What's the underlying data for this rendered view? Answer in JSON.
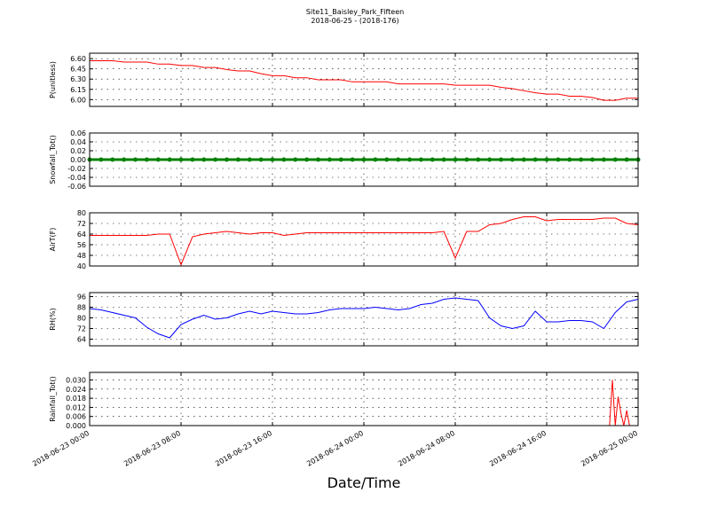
{
  "chart_data": [
    {
      "type": "line",
      "title": "Site11_Baisley_Park_Fifteen",
      "subtitle": "2018-06-25 - (2018-176)",
      "ylabel": "P(unitless)",
      "x": [
        "2018-06-23 00:00",
        "2018-06-23 01:00",
        "2018-06-23 02:00",
        "2018-06-23 03:00",
        "2018-06-23 04:00",
        "2018-06-23 05:00",
        "2018-06-23 06:00",
        "2018-06-23 07:00",
        "2018-06-23 08:00",
        "2018-06-23 09:00",
        "2018-06-23 10:00",
        "2018-06-23 11:00",
        "2018-06-23 12:00",
        "2018-06-23 13:00",
        "2018-06-23 14:00",
        "2018-06-23 15:00",
        "2018-06-23 16:00",
        "2018-06-23 17:00",
        "2018-06-23 18:00",
        "2018-06-23 19:00",
        "2018-06-23 20:00",
        "2018-06-23 21:00",
        "2018-06-23 22:00",
        "2018-06-23 23:00",
        "2018-06-24 00:00",
        "2018-06-24 01:00",
        "2018-06-24 02:00",
        "2018-06-24 03:00",
        "2018-06-24 04:00",
        "2018-06-24 05:00",
        "2018-06-24 06:00",
        "2018-06-24 07:00",
        "2018-06-24 08:00",
        "2018-06-24 09:00",
        "2018-06-24 10:00",
        "2018-06-24 11:00",
        "2018-06-24 12:00",
        "2018-06-24 13:00",
        "2018-06-24 14:00",
        "2018-06-24 15:00",
        "2018-06-24 16:00",
        "2018-06-24 17:00",
        "2018-06-24 18:00",
        "2018-06-24 19:00",
        "2018-06-24 20:00",
        "2018-06-24 21:00",
        "2018-06-24 22:00",
        "2018-06-24 23:00",
        "2018-06-25 00:00"
      ],
      "values": [
        6.57,
        6.57,
        6.57,
        6.55,
        6.55,
        6.55,
        6.52,
        6.52,
        6.5,
        6.5,
        6.47,
        6.47,
        6.44,
        6.42,
        6.42,
        6.38,
        6.35,
        6.35,
        6.32,
        6.32,
        6.29,
        6.29,
        6.29,
        6.26,
        6.26,
        6.26,
        6.26,
        6.23,
        6.23,
        6.23,
        6.23,
        6.23,
        6.21,
        6.21,
        6.21,
        6.21,
        6.18,
        6.16,
        6.13,
        6.1,
        6.08,
        6.08,
        6.05,
        6.05,
        6.03,
        5.99,
        5.99,
        6.02,
        6.02
      ],
      "color": "#ff0000",
      "ylim": [
        5.9,
        6.68
      ],
      "yticks": [
        {
          "value": 6.0,
          "label": "6.00"
        },
        6.15,
        {
          "value": 6.3,
          "label": "6.30"
        },
        6.45,
        {
          "value": 6.6,
          "label": "6.60"
        }
      ],
      "grid": true
    },
    {
      "type": "line",
      "ylabel": "Snowfall_Tot()",
      "marker": true,
      "x": [
        "2018-06-23 00:00",
        "2018-06-23 01:00",
        "2018-06-23 02:00",
        "2018-06-23 03:00",
        "2018-06-23 04:00",
        "2018-06-23 05:00",
        "2018-06-23 06:00",
        "2018-06-23 07:00",
        "2018-06-23 08:00",
        "2018-06-23 09:00",
        "2018-06-23 10:00",
        "2018-06-23 11:00",
        "2018-06-23 12:00",
        "2018-06-23 13:00",
        "2018-06-23 14:00",
        "2018-06-23 15:00",
        "2018-06-23 16:00",
        "2018-06-23 17:00",
        "2018-06-23 18:00",
        "2018-06-23 19:00",
        "2018-06-23 20:00",
        "2018-06-23 21:00",
        "2018-06-23 22:00",
        "2018-06-23 23:00",
        "2018-06-24 00:00",
        "2018-06-24 01:00",
        "2018-06-24 02:00",
        "2018-06-24 03:00",
        "2018-06-24 04:00",
        "2018-06-24 05:00",
        "2018-06-24 06:00",
        "2018-06-24 07:00",
        "2018-06-24 08:00",
        "2018-06-24 09:00",
        "2018-06-24 10:00",
        "2018-06-24 11:00",
        "2018-06-24 12:00",
        "2018-06-24 13:00",
        "2018-06-24 14:00",
        "2018-06-24 15:00",
        "2018-06-24 16:00",
        "2018-06-24 17:00",
        "2018-06-24 18:00",
        "2018-06-24 19:00",
        "2018-06-24 20:00",
        "2018-06-24 21:00",
        "2018-06-24 22:00",
        "2018-06-24 23:00",
        "2018-06-25 00:00"
      ],
      "values": [
        0,
        0,
        0,
        0,
        0,
        0,
        0,
        0,
        0,
        0,
        0,
        0,
        0,
        0,
        0,
        0,
        0,
        0,
        0,
        0,
        0,
        0,
        0,
        0,
        0,
        0,
        0,
        0,
        0,
        0,
        0,
        0,
        0,
        0,
        0,
        0,
        0,
        0,
        0,
        0,
        0,
        0,
        0,
        0,
        0,
        0,
        0,
        0,
        0
      ],
      "color": "#008000",
      "ylim": [
        -0.06,
        0.06
      ],
      "yticks": [
        -0.06,
        -0.04,
        -0.02,
        {
          "value": 0,
          "label": "0.00"
        },
        0.02,
        0.04,
        0.06
      ],
      "grid": true
    },
    {
      "type": "line",
      "ylabel": "AirT(F)",
      "x": [
        "2018-06-23 00:00",
        "2018-06-23 01:00",
        "2018-06-23 02:00",
        "2018-06-23 03:00",
        "2018-06-23 04:00",
        "2018-06-23 05:00",
        "2018-06-23 06:00",
        "2018-06-23 07:00",
        "2018-06-23 08:00",
        "2018-06-23 09:00",
        "2018-06-23 10:00",
        "2018-06-23 11:00",
        "2018-06-23 12:00",
        "2018-06-23 13:00",
        "2018-06-23 14:00",
        "2018-06-23 15:00",
        "2018-06-23 16:00",
        "2018-06-23 17:00",
        "2018-06-23 18:00",
        "2018-06-23 19:00",
        "2018-06-23 20:00",
        "2018-06-23 21:00",
        "2018-06-23 22:00",
        "2018-06-23 23:00",
        "2018-06-24 00:00",
        "2018-06-24 01:00",
        "2018-06-24 02:00",
        "2018-06-24 03:00",
        "2018-06-24 04:00",
        "2018-06-24 05:00",
        "2018-06-24 06:00",
        "2018-06-24 07:00",
        "2018-06-24 08:00",
        "2018-06-24 09:00",
        "2018-06-24 10:00",
        "2018-06-24 11:00",
        "2018-06-24 12:00",
        "2018-06-24 13:00",
        "2018-06-24 14:00",
        "2018-06-24 15:00",
        "2018-06-24 16:00",
        "2018-06-24 17:00",
        "2018-06-24 18:00",
        "2018-06-24 19:00",
        "2018-06-24 20:00",
        "2018-06-24 21:00",
        "2018-06-24 22:00",
        "2018-06-24 23:00",
        "2018-06-25 00:00"
      ],
      "values": [
        63,
        63,
        63,
        63,
        63,
        63,
        64,
        64,
        41,
        62,
        64,
        65,
        66,
        65,
        64,
        65,
        65,
        63,
        64,
        65,
        65,
        65,
        65,
        65,
        65,
        65,
        65,
        65,
        65,
        65,
        65,
        66,
        46,
        66,
        66,
        71,
        72,
        75,
        77,
        77,
        74,
        75,
        75,
        75,
        75,
        76,
        76,
        72,
        71
      ],
      "color": "#ff0000",
      "ylim": [
        40,
        80
      ],
      "yticks": [
        40,
        48,
        56,
        64,
        72,
        80
      ],
      "grid": true
    },
    {
      "type": "line",
      "ylabel": "RH(%)",
      "x": [
        "2018-06-23 00:00",
        "2018-06-23 01:00",
        "2018-06-23 02:00",
        "2018-06-23 03:00",
        "2018-06-23 04:00",
        "2018-06-23 05:00",
        "2018-06-23 06:00",
        "2018-06-23 07:00",
        "2018-06-23 08:00",
        "2018-06-23 09:00",
        "2018-06-23 10:00",
        "2018-06-23 11:00",
        "2018-06-23 12:00",
        "2018-06-23 13:00",
        "2018-06-23 14:00",
        "2018-06-23 15:00",
        "2018-06-23 16:00",
        "2018-06-23 17:00",
        "2018-06-23 18:00",
        "2018-06-23 19:00",
        "2018-06-23 20:00",
        "2018-06-23 21:00",
        "2018-06-23 22:00",
        "2018-06-23 23:00",
        "2018-06-24 00:00",
        "2018-06-24 01:00",
        "2018-06-24 02:00",
        "2018-06-24 03:00",
        "2018-06-24 04:00",
        "2018-06-24 05:00",
        "2018-06-24 06:00",
        "2018-06-24 07:00",
        "2018-06-24 08:00",
        "2018-06-24 09:00",
        "2018-06-24 10:00",
        "2018-06-24 11:00",
        "2018-06-24 12:00",
        "2018-06-24 13:00",
        "2018-06-24 14:00",
        "2018-06-24 15:00",
        "2018-06-24 16:00",
        "2018-06-24 17:00",
        "2018-06-24 18:00",
        "2018-06-24 19:00",
        "2018-06-24 20:00",
        "2018-06-24 21:00",
        "2018-06-24 22:00",
        "2018-06-24 23:00",
        "2018-06-25 00:00"
      ],
      "values": [
        87,
        86,
        84,
        82,
        80,
        73,
        68,
        65,
        75,
        79,
        82,
        79,
        80,
        83,
        85,
        83,
        85,
        84,
        83,
        83,
        84,
        86,
        87,
        87,
        87,
        88,
        87,
        86,
        87,
        90,
        91,
        94,
        95,
        94,
        93,
        80,
        74,
        72,
        74,
        85,
        77,
        77,
        78,
        78,
        77,
        72,
        84,
        92,
        94
      ],
      "color": "#0000ff",
      "ylim": [
        59,
        99
      ],
      "yticks": [
        64,
        72,
        80,
        88,
        96
      ],
      "grid": true
    },
    {
      "type": "line",
      "ylabel": "Rainfall_Tot()",
      "xlabel": "Date/Time",
      "x": [
        "2018-06-23 00:00",
        "2018-06-23 04:00",
        "2018-06-23 08:00",
        "2018-06-23 12:00",
        "2018-06-23 16:00",
        "2018-06-23 20:00",
        "2018-06-24 00:00",
        "2018-06-24 04:00",
        "2018-06-24 08:00",
        "2018-06-24 12:00",
        "2018-06-24 16:00",
        "2018-06-24 20:00",
        "2018-06-24 21:30",
        "2018-06-24 21:45",
        "2018-06-24 22:00",
        "2018-06-24 22:15",
        "2018-06-24 22:30",
        "2018-06-24 22:45",
        "2018-06-24 23:00",
        "2018-06-24 23:15",
        "2018-06-25 00:00"
      ],
      "values": [
        0,
        0,
        0,
        0,
        0,
        0,
        0,
        0,
        0,
        0,
        0,
        0,
        0,
        0.03,
        0,
        0.019,
        0.008,
        0,
        0.01,
        0,
        0
      ],
      "color": "#ff0000",
      "ylim": [
        0,
        0.035
      ],
      "yticks": [
        {
          "value": 0,
          "label": "0.000"
        },
        0.006,
        0.012,
        0.018,
        0.024,
        {
          "value": 0.03,
          "label": "0.030"
        }
      ],
      "grid": true,
      "xlim": [
        "2018-06-23 00:00",
        "2018-06-25 00:00"
      ],
      "xticks": [
        "2018-06-23 00:00",
        "2018-06-23 08:00",
        "2018-06-23 16:00",
        "2018-06-24 00:00",
        "2018-06-24 08:00",
        "2018-06-24 16:00",
        "2018-06-25 00:00"
      ]
    }
  ]
}
